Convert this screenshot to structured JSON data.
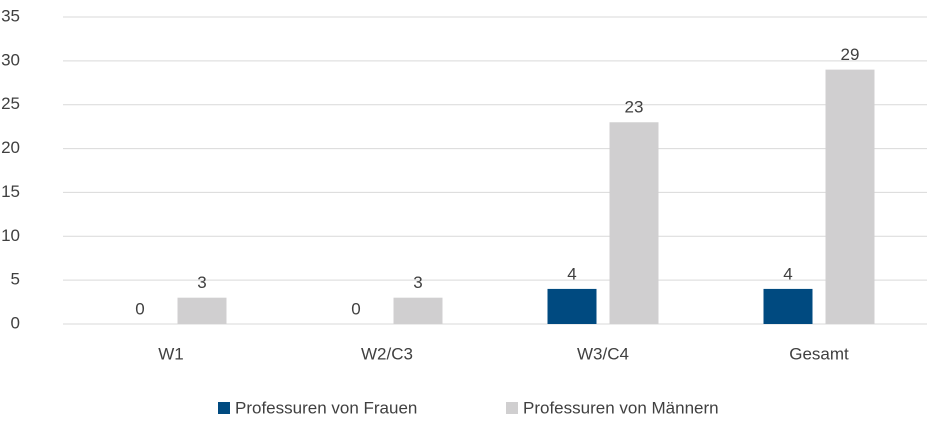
{
  "chart_data": {
    "type": "bar",
    "categories": [
      "W1",
      "W2/C3",
      "W3/C4",
      "Gesamt"
    ],
    "series": [
      {
        "name": "Professuren von Frauen",
        "color": "#004a80",
        "values": [
          0,
          0,
          4,
          4
        ]
      },
      {
        "name": "Professuren von Männern",
        "color": "#d0cfd0",
        "values": [
          3,
          3,
          23,
          29
        ]
      }
    ],
    "ylim": [
      0,
      35
    ],
    "yticks": [
      0,
      5,
      10,
      15,
      20,
      25,
      30,
      35
    ],
    "grid": true,
    "legend": "bottom"
  }
}
